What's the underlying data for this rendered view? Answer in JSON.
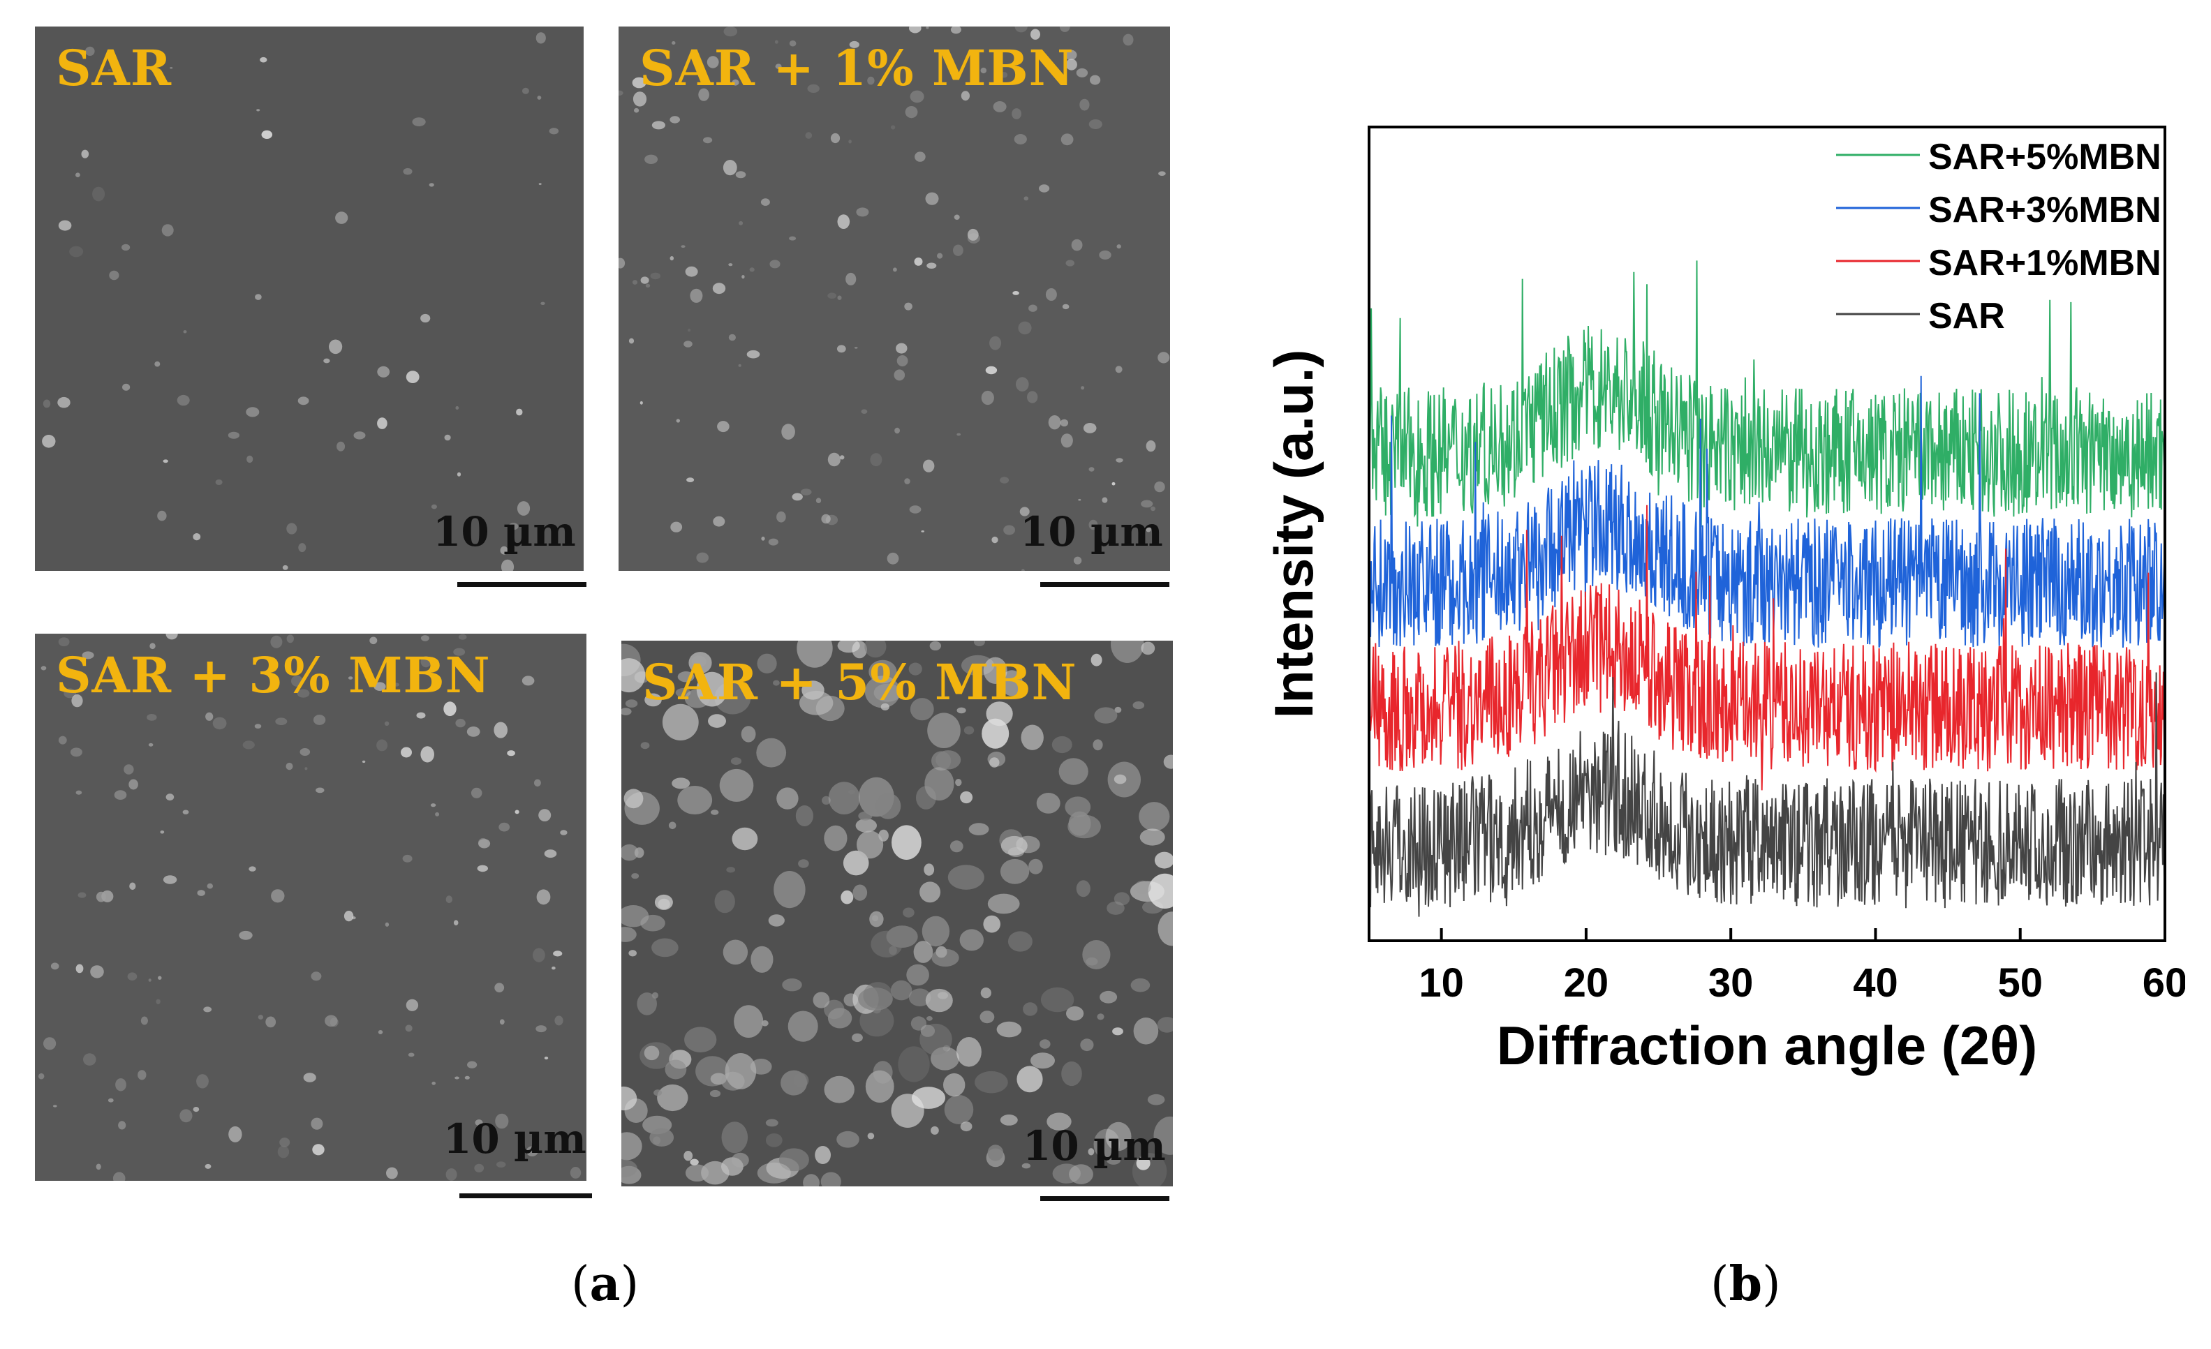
{
  "panel_a": {
    "label": "a",
    "images": [
      {
        "label": "SAR",
        "scale": "10 µm"
      },
      {
        "label": "SAR + 1% MBN",
        "scale": "10 µm"
      },
      {
        "label": "SAR + 3% MBN",
        "scale": "10 µm"
      },
      {
        "label": "SAR + 5% MBN",
        "scale": "10 µm"
      }
    ]
  },
  "panel_b": {
    "label": "b"
  },
  "colors": {
    "sar": "#444444",
    "mbn1": "#e8262c",
    "mbn3": "#1f63d9",
    "mbn5": "#2fae66",
    "sem_label": "#f2b40f"
  },
  "chart_data": {
    "type": "line",
    "title": "",
    "xlabel": "Diffraction angle (2θ)",
    "ylabel": "Intensity (a.u.)",
    "xlim": [
      5,
      60
    ],
    "xticks": [
      10,
      20,
      30,
      40,
      50,
      60
    ],
    "y_ticks_shown": false,
    "legend_position": "top-right",
    "series": [
      {
        "name": "SAR+5%MBN",
        "color": "#2fae66",
        "baseline": 12,
        "noise": 5,
        "hump_center": 21,
        "hump_height": 5
      },
      {
        "name": "SAR+3%MBN",
        "color": "#1f63d9",
        "baseline": 8,
        "noise": 5,
        "hump_center": 21,
        "hump_height": 4.5
      },
      {
        "name": "SAR+1%MBN",
        "color": "#e8262c",
        "baseline": 4.2,
        "noise": 5,
        "hump_center": 21,
        "hump_height": 4.5
      },
      {
        "name": "SAR",
        "color": "#444444",
        "baseline": 0,
        "noise": 5,
        "hump_center": 21,
        "hump_height": 4
      }
    ]
  }
}
